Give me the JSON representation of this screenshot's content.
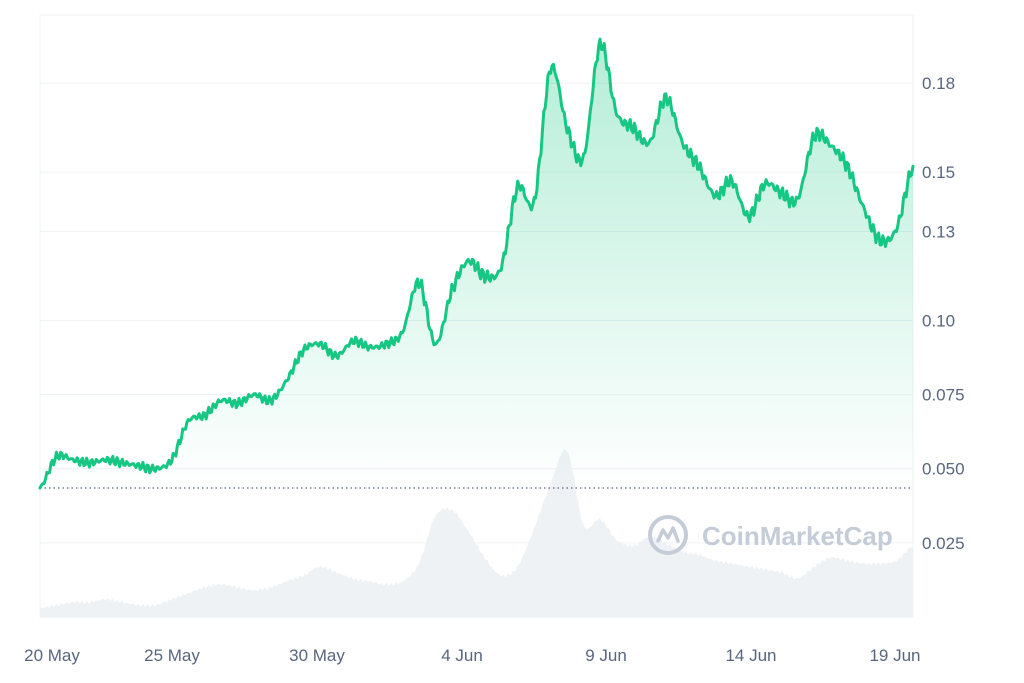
{
  "watermark": "CoinMarketCap",
  "chart_data": {
    "type": "area",
    "x_ticks": [
      "20 May",
      "25 May",
      "30 May",
      "4 Jun",
      "9 Jun",
      "14 Jun",
      "19 Jun"
    ],
    "y_ticks": [
      "0.025",
      "0.050",
      "0.075",
      "0.10",
      "0.13",
      "0.15",
      "0.18"
    ],
    "ylim": [
      0,
      0.203
    ],
    "baseline": 0.0435,
    "grid": true,
    "colors": {
      "line": "#16c784",
      "fill": "#16c784",
      "volume": "#eff2f5",
      "grid": "#eff2f5",
      "baseline": "#58667e"
    },
    "x": [
      "20 May",
      "20 May",
      "21 May",
      "21 May",
      "22 May",
      "23 May",
      "24 May",
      "24 May",
      "25 May",
      "26 May",
      "26 May",
      "27 May",
      "27 May",
      "28 May",
      "29 May",
      "29 May",
      "30 May",
      "31 May",
      "31 May",
      "1 Jun",
      "1 Jun",
      "2 Jun",
      "3 Jun",
      "3 Jun",
      "4 Jun",
      "4 Jun",
      "5 Jun",
      "5 Jun",
      "6 Jun",
      "7 Jun",
      "7 Jun",
      "8 Jun",
      "8 Jun",
      "9 Jun",
      "10 Jun",
      "10 Jun",
      "11 Jun",
      "11 Jun",
      "12 Jun",
      "12 Jun",
      "13 Jun",
      "13 Jun",
      "14 Jun",
      "14 Jun",
      "15 Jun",
      "16 Jun",
      "16 Jun",
      "17 Jun",
      "17 Jun",
      "18 Jun",
      "18 Jun",
      "19 Jun",
      "19 Jun",
      "20 Jun"
    ],
    "price": [
      0.0435,
      0.054,
      0.053,
      0.052,
      0.053,
      0.052,
      0.051,
      0.05,
      0.053,
      0.066,
      0.068,
      0.073,
      0.072,
      0.075,
      0.073,
      0.08,
      0.09,
      0.092,
      0.088,
      0.093,
      0.091,
      0.092,
      0.096,
      0.113,
      0.092,
      0.11,
      0.12,
      0.115,
      0.118,
      0.145,
      0.14,
      0.185,
      0.165,
      0.155,
      0.193,
      0.17,
      0.165,
      0.16,
      0.175,
      0.16,
      0.152,
      0.142,
      0.147,
      0.135,
      0.146,
      0.143,
      0.141,
      0.162,
      0.159,
      0.152,
      0.138,
      0.127,
      0.131,
      0.152
    ],
    "volume": [
      0.003,
      0.004,
      0.005,
      0.005,
      0.006,
      0.005,
      0.004,
      0.004,
      0.006,
      0.008,
      0.01,
      0.011,
      0.01,
      0.009,
      0.01,
      0.012,
      0.014,
      0.017,
      0.015,
      0.013,
      0.012,
      0.011,
      0.012,
      0.018,
      0.034,
      0.036,
      0.029,
      0.02,
      0.014,
      0.017,
      0.03,
      0.045,
      0.056,
      0.031,
      0.033,
      0.026,
      0.024,
      0.027,
      0.025,
      0.022,
      0.021,
      0.019,
      0.018,
      0.017,
      0.016,
      0.015,
      0.013,
      0.017,
      0.02,
      0.019,
      0.018,
      0.018,
      0.019,
      0.024
    ]
  }
}
